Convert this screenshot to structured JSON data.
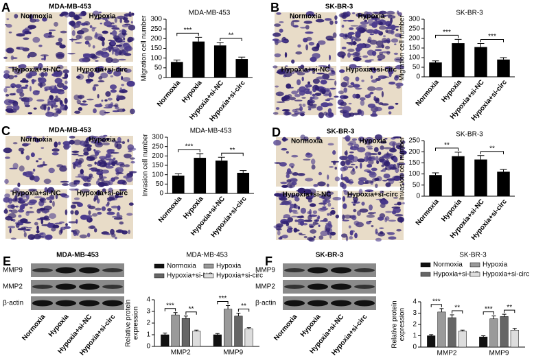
{
  "chart_data": [
    {
      "type": "bar",
      "title": "MDA-MB-453",
      "ylabel": "Migration cell number",
      "categories": [
        "Normoxia",
        "Hypoxia",
        "Hypoxia+si-NC",
        "Hypoxia+si-circ"
      ],
      "values": [
        80,
        185,
        165,
        95
      ],
      "errors": [
        10,
        22,
        15,
        10
      ],
      "color": "#000000",
      "ylim": [
        0,
        300
      ],
      "yticks": [
        0,
        50,
        100,
        150,
        200,
        250,
        300
      ],
      "annotations": [
        "***",
        "**"
      ]
    },
    {
      "type": "bar",
      "title": "SK-BR-3",
      "ylabel": "Migration cell number",
      "categories": [
        "Normoxia",
        "Hypoxia",
        "Hypoxia+si-NC",
        "Hypoxia+si-circ"
      ],
      "values": [
        75,
        175,
        155,
        90
      ],
      "errors": [
        8,
        20,
        18,
        10
      ],
      "color": "#000000",
      "ylim": [
        0,
        300
      ],
      "yticks": [
        0,
        50,
        100,
        150,
        200,
        250,
        300
      ],
      "annotations": [
        "***",
        "***"
      ]
    },
    {
      "type": "bar",
      "title": "MDA-MB-453",
      "ylabel": "Invasion cell number",
      "categories": [
        "Normoxia",
        "Hypoxia",
        "Hypoxia+si-NC",
        "Hypoxia+si-circ"
      ],
      "values": [
        95,
        190,
        175,
        110
      ],
      "errors": [
        10,
        22,
        18,
        12
      ],
      "color": "#000000",
      "ylim": [
        0,
        300
      ],
      "yticks": [
        0,
        50,
        100,
        150,
        200,
        250,
        300
      ],
      "annotations": [
        "***",
        "**"
      ]
    },
    {
      "type": "bar",
      "title": "SK-BR-3",
      "ylabel": "Invasion cell number",
      "categories": [
        "Normoxia",
        "Hypoxia",
        "Hypoxia+si-NC",
        "Hypoxia+si-circ"
      ],
      "values": [
        95,
        180,
        165,
        110
      ],
      "errors": [
        10,
        18,
        18,
        10
      ],
      "color": "#000000",
      "ylim": [
        0,
        250
      ],
      "yticks": [
        0,
        50,
        100,
        150,
        200,
        250
      ],
      "annotations": [
        "**",
        "**"
      ]
    },
    {
      "type": "bar",
      "title": "MDA-MB-453",
      "ylabel": [
        "Relative protein",
        "expression"
      ],
      "categories": [
        "MMP2",
        "MMP9"
      ],
      "series": [
        {
          "name": "Normoxia",
          "color": "#111111",
          "values": [
            1.0,
            1.0
          ],
          "errors": [
            0.15,
            0.1
          ]
        },
        {
          "name": "Hypoxia",
          "color": "#9a9a9a",
          "values": [
            2.7,
            3.2
          ],
          "errors": [
            0.2,
            0.3
          ]
        },
        {
          "name": "Hypoxia+si-NC",
          "color": "#666666",
          "values": [
            2.4,
            2.6
          ],
          "errors": [
            0.2,
            0.25
          ]
        },
        {
          "name": "Hypoxia+si-circ",
          "color": "#dddddd",
          "values": [
            1.3,
            1.5
          ],
          "errors": [
            0.1,
            0.1
          ]
        }
      ],
      "ylim": [
        0,
        4
      ],
      "yticks": [
        0,
        1,
        2,
        3,
        4
      ],
      "annotations": [
        "***",
        "**",
        "***",
        "**"
      ]
    },
    {
      "type": "bar",
      "title": "SK-BR-3",
      "ylabel": [
        "Relative protein",
        "expression"
      ],
      "categories": [
        "MMP2",
        "MMP9"
      ],
      "series": [
        {
          "name": "Normoxia",
          "color": "#111111",
          "values": [
            1.0,
            0.9
          ],
          "errors": [
            0.1,
            0.1
          ]
        },
        {
          "name": "Hypoxia",
          "color": "#9a9a9a",
          "values": [
            3.1,
            2.5
          ],
          "errors": [
            0.3,
            0.25
          ]
        },
        {
          "name": "Hypoxia+si-NC",
          "color": "#666666",
          "values": [
            2.6,
            2.7
          ],
          "errors": [
            0.25,
            0.2
          ]
        },
        {
          "name": "Hypoxia+si-circ",
          "color": "#dddddd",
          "values": [
            1.4,
            1.5
          ],
          "errors": [
            0.1,
            0.15
          ]
        }
      ],
      "ylim": [
        0,
        4
      ],
      "yticks": [
        0,
        1,
        2,
        3,
        4
      ],
      "annotations": [
        "***",
        "**",
        "***",
        "**"
      ]
    }
  ],
  "panels": [
    {
      "letter": "A",
      "heading": "MDA-MB-453",
      "image_labels": [
        "Normoxia",
        "Hypoxia",
        "Hypoxia+si-NC",
        "Hypoxia+si-circ"
      ]
    },
    {
      "letter": "B",
      "heading": "SK-BR-3",
      "image_labels": [
        "Normoxia",
        "Hypoxia",
        "Hypoxia+si-NC",
        "Hypoxia+si-circ"
      ]
    },
    {
      "letter": "C",
      "heading": "MDA-MB-453",
      "image_labels": [
        "Normoxia",
        "Hypoxia",
        "Hypoxia+si-NC",
        "Hypoxia+si-circ"
      ]
    },
    {
      "letter": "D",
      "heading": "SK-BR-3",
      "image_labels": [
        "Normoxia",
        "Hypoxia",
        "Hypoxia+si-NC",
        "Hypoxia+si-circ"
      ]
    }
  ],
  "blots": [
    {
      "letter": "E",
      "heading": "MDA-MB-453",
      "proteins": [
        "MMP9",
        "MMP2",
        "β-actin"
      ],
      "lanes": [
        "Normoxia",
        "Hypoxia",
        "Hypoxia+si-NC",
        "Hypoxia+si-circ"
      ]
    },
    {
      "letter": "F",
      "heading": "SK-BR-3",
      "proteins": [
        "MMP9",
        "MMP2",
        "β-actin"
      ],
      "lanes": [
        "Normoxia",
        "Hypoxia",
        "Hypoxia+si-NC",
        "Hypoxia+si-circ"
      ]
    }
  ]
}
